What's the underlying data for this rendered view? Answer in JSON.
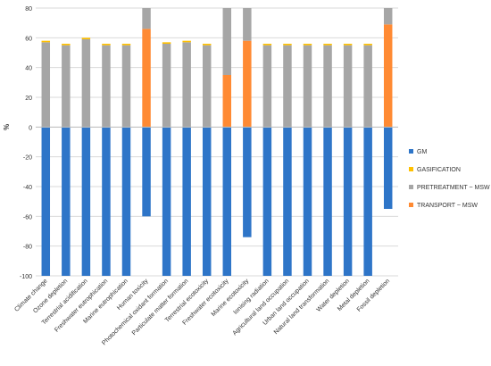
{
  "chart_data": {
    "type": "bar",
    "stacked": true,
    "ylabel": "%",
    "ylim": [
      -100,
      80
    ],
    "yticks": [
      80,
      60,
      40,
      20,
      0,
      -20,
      -40,
      -60,
      -80,
      -100
    ],
    "grid": true,
    "legend_position": "right",
    "categories": [
      "Climate change",
      "Ozone depletion",
      "Terrestrial acidification",
      "Freshwater eutrophication",
      "Marine eutrophication",
      "Human toxicity",
      "Photochemical oxidant formation",
      "Particulate matter formation",
      "Terrestrial ecotoxicity",
      "Freshwater ecotoxicity",
      "Marine ecotoxicity",
      "Ionising radiation",
      "Agricultural land occupation",
      "Urban land occupation",
      "Natural land transformation",
      "Water depletion",
      "Metal depletion",
      "Fossil depletion"
    ],
    "series": [
      {
        "name": "GM",
        "color": "#2E75C8",
        "values": [
          -100,
          -100,
          -100,
          -100,
          -100,
          -60,
          -100,
          -100,
          -100,
          -100,
          -74,
          -100,
          -100,
          -100,
          -100,
          -100,
          -100,
          -55
        ]
      },
      {
        "name": "TRANSPORT ~ MSW",
        "color": "#FF8A33",
        "values": [
          0,
          0,
          0,
          0,
          0,
          66,
          0,
          0,
          0,
          35,
          58,
          0,
          0,
          0,
          0,
          0,
          0,
          69
        ]
      },
      {
        "name": "PRETREATMENT ~ MSW",
        "color": "#A6A6A6",
        "values": [
          57,
          55,
          59,
          55,
          55,
          14,
          56,
          57,
          55,
          45,
          22,
          55,
          55,
          55,
          55,
          55,
          55,
          11
        ]
      },
      {
        "name": "GASIFICATION",
        "color": "#FFC000",
        "values": [
          1,
          1,
          1,
          1,
          1,
          0,
          1,
          1,
          1,
          0,
          0,
          1,
          1,
          1,
          1,
          1,
          1,
          0
        ]
      }
    ],
    "legend_order": [
      "GM",
      "GASIFICATION",
      "PRETREATMENT ~ MSW",
      "TRANSPORT ~ MSW"
    ]
  }
}
